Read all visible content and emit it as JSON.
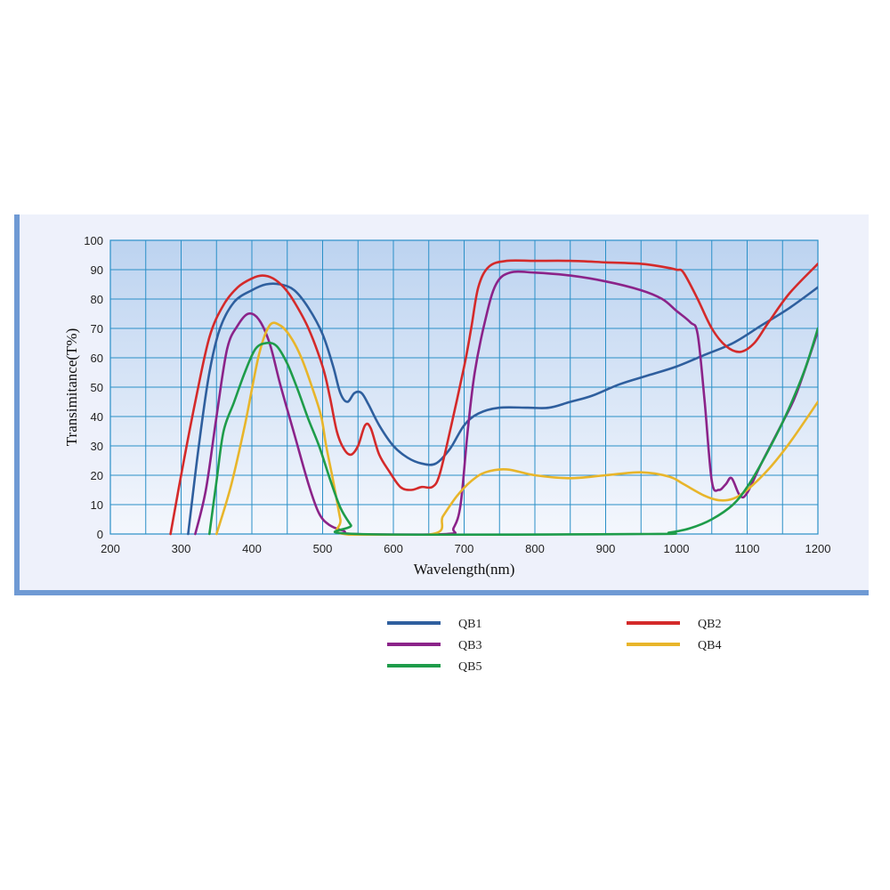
{
  "chart_data": {
    "type": "line",
    "xlabel": "Wavelength(nm)",
    "ylabel": "Transimitance(T%)",
    "xlim": [
      200,
      1200
    ],
    "ylim": [
      0,
      100
    ],
    "x_ticks": [
      "200",
      "300",
      "400",
      "500",
      "600",
      "700",
      "800",
      "900",
      "1000",
      "1100",
      "1200"
    ],
    "y_ticks": [
      "0",
      "10",
      "20",
      "30",
      "40",
      "50",
      "60",
      "70",
      "80",
      "90",
      "100"
    ],
    "grid": true,
    "legend_position": "below",
    "series": [
      {
        "name": "QB1",
        "color": "#2f5f9e",
        "points": [
          [
            310,
            0
          ],
          [
            325,
            30
          ],
          [
            340,
            55
          ],
          [
            355,
            70
          ],
          [
            375,
            79
          ],
          [
            400,
            83
          ],
          [
            420,
            85
          ],
          [
            440,
            85
          ],
          [
            460,
            83
          ],
          [
            480,
            77
          ],
          [
            500,
            68
          ],
          [
            515,
            57
          ],
          [
            525,
            48
          ],
          [
            535,
            45
          ],
          [
            545,
            48
          ],
          [
            555,
            48
          ],
          [
            565,
            44
          ],
          [
            580,
            37
          ],
          [
            600,
            30
          ],
          [
            620,
            26
          ],
          [
            640,
            24
          ],
          [
            660,
            24
          ],
          [
            680,
            29
          ],
          [
            700,
            37
          ],
          [
            720,
            41
          ],
          [
            750,
            43
          ],
          [
            790,
            43
          ],
          [
            820,
            43
          ],
          [
            850,
            45
          ],
          [
            880,
            47
          ],
          [
            920,
            51
          ],
          [
            960,
            54
          ],
          [
            1000,
            57
          ],
          [
            1040,
            61
          ],
          [
            1080,
            65
          ],
          [
            1120,
            71
          ],
          [
            1160,
            77
          ],
          [
            1200,
            84
          ]
        ]
      },
      {
        "name": "QB2",
        "color": "#d42a2a",
        "points": [
          [
            285,
            0
          ],
          [
            300,
            20
          ],
          [
            320,
            45
          ],
          [
            340,
            67
          ],
          [
            360,
            78
          ],
          [
            380,
            84
          ],
          [
            400,
            87
          ],
          [
            415,
            88
          ],
          [
            430,
            87
          ],
          [
            445,
            84
          ],
          [
            460,
            79
          ],
          [
            480,
            70
          ],
          [
            500,
            57
          ],
          [
            510,
            47
          ],
          [
            520,
            35
          ],
          [
            530,
            29
          ],
          [
            540,
            27
          ],
          [
            550,
            30
          ],
          [
            560,
            37
          ],
          [
            568,
            36
          ],
          [
            580,
            27
          ],
          [
            595,
            21
          ],
          [
            610,
            16
          ],
          [
            625,
            15
          ],
          [
            640,
            16
          ],
          [
            655,
            16
          ],
          [
            665,
            20
          ],
          [
            680,
            35
          ],
          [
            700,
            57
          ],
          [
            710,
            70
          ],
          [
            720,
            84
          ],
          [
            735,
            91
          ],
          [
            760,
            93
          ],
          [
            800,
            93
          ],
          [
            850,
            93
          ],
          [
            900,
            92.5
          ],
          [
            950,
            92
          ],
          [
            980,
            91
          ],
          [
            1000,
            90
          ],
          [
            1010,
            89
          ],
          [
            1030,
            80
          ],
          [
            1050,
            70
          ],
          [
            1070,
            64
          ],
          [
            1090,
            62
          ],
          [
            1110,
            65
          ],
          [
            1130,
            72
          ],
          [
            1160,
            82
          ],
          [
            1200,
            92
          ]
        ]
      },
      {
        "name": "QB3",
        "color": "#8b2389",
        "points": [
          [
            320,
            0
          ],
          [
            335,
            15
          ],
          [
            350,
            40
          ],
          [
            365,
            63
          ],
          [
            380,
            71
          ],
          [
            395,
            75
          ],
          [
            410,
            73
          ],
          [
            425,
            65
          ],
          [
            440,
            51
          ],
          [
            460,
            34
          ],
          [
            480,
            17
          ],
          [
            495,
            7
          ],
          [
            510,
            3
          ],
          [
            530,
            1
          ],
          [
            545,
            0
          ],
          [
            675,
            0
          ],
          [
            685,
            2
          ],
          [
            695,
            10
          ],
          [
            705,
            35
          ],
          [
            715,
            55
          ],
          [
            730,
            73
          ],
          [
            745,
            85
          ],
          [
            765,
            89
          ],
          [
            800,
            89
          ],
          [
            850,
            88
          ],
          [
            900,
            86
          ],
          [
            950,
            83
          ],
          [
            980,
            80
          ],
          [
            1000,
            76
          ],
          [
            1020,
            72
          ],
          [
            1030,
            68
          ],
          [
            1040,
            45
          ],
          [
            1050,
            18
          ],
          [
            1060,
            15
          ],
          [
            1070,
            17
          ],
          [
            1078,
            19
          ],
          [
            1090,
            13
          ],
          [
            1100,
            14
          ],
          [
            1120,
            24
          ],
          [
            1150,
            38
          ],
          [
            1170,
            48
          ],
          [
            1200,
            69
          ]
        ]
      },
      {
        "name": "QB4",
        "color": "#e8b52a",
        "points": [
          [
            350,
            0
          ],
          [
            370,
            16
          ],
          [
            390,
            37
          ],
          [
            410,
            61
          ],
          [
            425,
            71
          ],
          [
            440,
            71
          ],
          [
            455,
            67
          ],
          [
            470,
            60
          ],
          [
            485,
            50
          ],
          [
            498,
            40
          ],
          [
            505,
            30
          ],
          [
            515,
            18
          ],
          [
            525,
            5
          ],
          [
            530,
            0
          ],
          [
            655,
            0
          ],
          [
            670,
            6
          ],
          [
            690,
            13
          ],
          [
            710,
            18
          ],
          [
            730,
            21
          ],
          [
            760,
            22
          ],
          [
            800,
            20
          ],
          [
            850,
            19
          ],
          [
            900,
            20
          ],
          [
            950,
            21
          ],
          [
            990,
            19.5
          ],
          [
            1010,
            17
          ],
          [
            1040,
            13
          ],
          [
            1060,
            11.5
          ],
          [
            1080,
            12
          ],
          [
            1100,
            15
          ],
          [
            1130,
            22
          ],
          [
            1160,
            31
          ],
          [
            1200,
            45
          ]
        ]
      },
      {
        "name": "QB5",
        "color": "#1e9c4a",
        "points": [
          [
            340,
            0
          ],
          [
            350,
            18
          ],
          [
            360,
            35
          ],
          [
            375,
            45
          ],
          [
            390,
            55
          ],
          [
            405,
            63
          ],
          [
            420,
            65
          ],
          [
            435,
            64
          ],
          [
            450,
            58
          ],
          [
            465,
            49
          ],
          [
            480,
            39
          ],
          [
            495,
            30
          ],
          [
            510,
            19
          ],
          [
            525,
            9
          ],
          [
            540,
            3
          ],
          [
            550,
            0
          ],
          [
            960,
            0
          ],
          [
            990,
            0.5
          ],
          [
            1020,
            2
          ],
          [
            1050,
            5
          ],
          [
            1080,
            10
          ],
          [
            1100,
            16
          ],
          [
            1120,
            24
          ],
          [
            1150,
            38
          ],
          [
            1180,
            55
          ],
          [
            1200,
            70
          ]
        ]
      }
    ]
  }
}
